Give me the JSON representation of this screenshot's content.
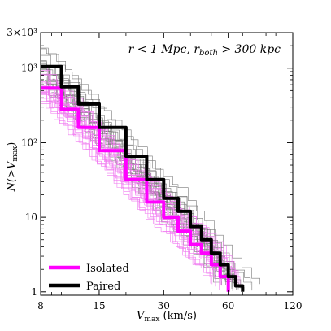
{
  "chart_data": {
    "type": "line",
    "title": "",
    "annotation_lead": "r  < 1 Mpc, r",
    "annotation_sub": "both",
    "annotation_tail": " > 300 kpc",
    "xlabel_main": "V",
    "xlabel_sub": "max",
    "xlabel_unit": " (km/s)",
    "ylabel_lead": "N(>V",
    "ylabel_sub": "max",
    "ylabel_tail": ")",
    "xscale": "log",
    "yscale": "log",
    "xlim": [
      8,
      120
    ],
    "ylim": [
      0.9,
      3000
    ],
    "xticks": [
      {
        "value": 8,
        "label": "8"
      },
      {
        "value": 15,
        "label": "15"
      },
      {
        "value": 30,
        "label": "30"
      },
      {
        "value": 60,
        "label": "60"
      },
      {
        "value": 120,
        "label": "120"
      }
    ],
    "yticks": [
      {
        "value": 1,
        "label": "1"
      },
      {
        "value": 10,
        "label": "10"
      },
      {
        "value": 100,
        "label": "10²"
      },
      {
        "value": 1000,
        "label": "10³"
      },
      {
        "value": 3000,
        "label": "3×10³"
      }
    ],
    "legend_position": "lower-left",
    "colors": {
      "isolated": "#ff00ff",
      "paired": "#000000",
      "paired_thin": "#7a7a7a",
      "isolated_thin": "#f07af0"
    },
    "series": [
      {
        "name": "Isolated",
        "style": "thick",
        "color": "#ff00ff",
        "x": [
          8,
          10,
          12,
          15,
          20,
          25,
          30,
          35,
          40,
          45,
          50,
          55,
          60
        ],
        "y": [
          540,
          280,
          160,
          78,
          32,
          16,
          10,
          6.5,
          4.3,
          3.3,
          2.3,
          1.6,
          1.0
        ]
      },
      {
        "name": "Paired",
        "style": "thick",
        "color": "#000000",
        "x": [
          8,
          10,
          12,
          15,
          20,
          25,
          30,
          35,
          40,
          45,
          50,
          55,
          60,
          65,
          70
        ],
        "y": [
          1050,
          560,
          330,
          160,
          66,
          32,
          18,
          12,
          7.5,
          5.0,
          3.3,
          2.3,
          1.6,
          1.2,
          1.0
        ]
      }
    ]
  }
}
